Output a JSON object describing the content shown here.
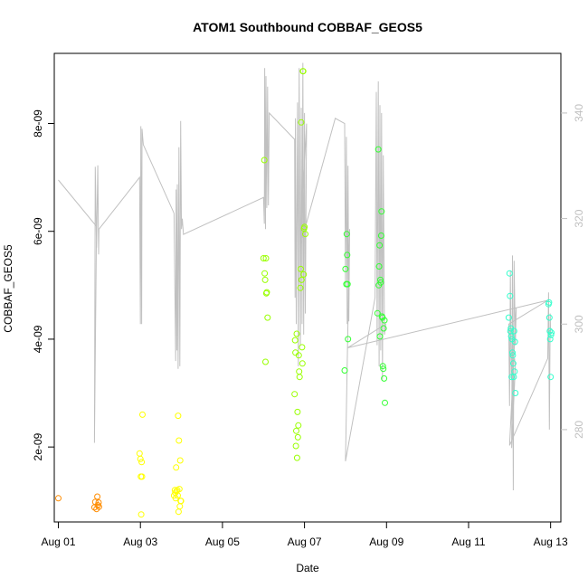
{
  "chart_data": {
    "type": "scatter",
    "title": "ATOM1 Southbound COBBAF_GEOS5",
    "xlabel": "Date",
    "ylabel": "COBBAF_GEOS5",
    "xlim": [
      -0.1,
      12.25
    ],
    "ylim": [
      6.1e-10,
      9.3e-09
    ],
    "y2lim": [
      262.5,
      351.3
    ],
    "x_ticks": [
      {
        "value": 0,
        "label": "Aug 01"
      },
      {
        "value": 2,
        "label": "Aug 03"
      },
      {
        "value": 4,
        "label": "Aug 05"
      },
      {
        "value": 6,
        "label": "Aug 07"
      },
      {
        "value": 8,
        "label": "Aug 09"
      },
      {
        "value": 10,
        "label": "Aug 11"
      },
      {
        "value": 12,
        "label": "Aug 13"
      }
    ],
    "y_ticks": [
      {
        "value": 2e-09,
        "label": "2e-09"
      },
      {
        "value": 4e-09,
        "label": "4e-09"
      },
      {
        "value": 6e-09,
        "label": "6e-09"
      },
      {
        "value": 8e-09,
        "label": "8e-09"
      }
    ],
    "y2_ticks": [
      {
        "value": 280,
        "label": "280"
      },
      {
        "value": 300,
        "label": "300"
      },
      {
        "value": 320,
        "label": "320"
      },
      {
        "value": 340,
        "label": "340"
      }
    ],
    "secondary_series": {
      "color": "#c0c0c0",
      "points": [
        [
          0.0,
          327.3
        ],
        [
          0.93,
          318.5
        ],
        [
          0.88,
          277.5
        ],
        [
          0.9,
          329.8
        ],
        [
          0.93,
          314.5
        ],
        [
          0.96,
          330.1
        ],
        [
          0.98,
          313.2
        ],
        [
          0.99,
          318.0
        ],
        [
          1.98,
          327.8
        ],
        [
          2.0,
          300.0
        ],
        [
          2.01,
          337.5
        ],
        [
          2.03,
          300.0
        ],
        [
          2.04,
          337.0
        ],
        [
          2.07,
          334.0
        ],
        [
          2.82,
          321.0
        ],
        [
          2.86,
          293.0
        ],
        [
          2.87,
          325.5
        ],
        [
          2.89,
          295.0
        ],
        [
          2.9,
          326.5
        ],
        [
          2.92,
          291.5
        ],
        [
          2.94,
          333.5
        ],
        [
          2.96,
          292.0
        ],
        [
          2.98,
          338.5
        ],
        [
          3.0,
          318.0
        ],
        [
          3.02,
          320.0
        ],
        [
          3.05,
          317.0
        ],
        [
          5.0,
          324.0
        ],
        [
          5.02,
          319.0
        ],
        [
          5.03,
          348.5
        ],
        [
          5.05,
          318.0
        ],
        [
          5.06,
          347.0
        ],
        [
          5.08,
          322.0
        ],
        [
          5.1,
          345.0
        ],
        [
          5.12,
          322.5
        ],
        [
          5.14,
          340.0
        ],
        [
          5.76,
          335.0
        ],
        [
          5.77,
          305.0
        ],
        [
          5.78,
          339.0
        ],
        [
          5.8,
          300.0
        ],
        [
          5.83,
          342.0
        ],
        [
          5.85,
          292.0
        ],
        [
          5.87,
          348.5
        ],
        [
          5.9,
          296.0
        ],
        [
          5.92,
          341.0
        ],
        [
          5.94,
          300.0
        ],
        [
          5.96,
          349.5
        ],
        [
          5.98,
          298.0
        ],
        [
          6.0,
          340.0
        ],
        [
          6.02,
          302.0
        ],
        [
          6.05,
          338.0
        ],
        [
          5.9,
          315.0
        ],
        [
          6.75,
          339.0
        ],
        [
          6.98,
          338.0
        ],
        [
          7.0,
          308.0
        ],
        [
          7.02,
          335.5
        ],
        [
          7.04,
          300.0
        ],
        [
          7.06,
          330.0
        ],
        [
          7.08,
          300.5
        ],
        [
          7.1,
          318.0
        ],
        [
          7.0,
          274.0
        ],
        [
          7.72,
          305.0
        ],
        [
          7.75,
          344.0
        ],
        [
          7.77,
          296.0
        ],
        [
          7.8,
          346.0
        ],
        [
          7.82,
          292.0
        ],
        [
          7.84,
          341.5
        ],
        [
          7.86,
          295.0
        ],
        [
          7.88,
          340.0
        ],
        [
          7.9,
          289.5
        ],
        [
          7.92,
          332.0
        ],
        [
          7.95,
          298.0
        ],
        [
          7.98,
          300.0
        ],
        [
          7.05,
          295.5
        ],
        [
          11.93,
          304.5
        ],
        [
          10.98,
          300.0
        ],
        [
          11.0,
          284.5
        ],
        [
          11.02,
          310.0
        ],
        [
          11.04,
          290.0
        ],
        [
          11.07,
          292.0
        ],
        [
          11.08,
          280.0
        ],
        [
          11.1,
          293.0
        ],
        [
          11.12,
          293.5
        ],
        [
          11.14,
          292.0
        ],
        [
          11.05,
          276.5
        ],
        [
          11.07,
          313.0
        ],
        [
          11.09,
          268.5
        ],
        [
          11.11,
          312.0
        ],
        [
          11.14,
          296.0
        ],
        [
          11.16,
          303.0
        ],
        [
          11.0,
          277.0
        ],
        [
          11.93,
          293.5
        ],
        [
          11.95,
          306.0
        ],
        [
          11.97,
          280.0
        ],
        [
          11.99,
          302.0
        ],
        [
          12.0,
          298.0
        ]
      ]
    },
    "series": [
      {
        "color": "#ff8c00",
        "points": [
          [
            0.0,
            1.05e-09
          ],
          [
            0.88,
            8.8e-10
          ],
          [
            0.9,
            9.8e-10
          ],
          [
            0.93,
            8.5e-10
          ],
          [
            0.95,
            1.08e-09
          ],
          [
            0.96,
            9.2e-10
          ],
          [
            0.98,
            9.7e-10
          ],
          [
            0.99,
            8.9e-10
          ]
        ]
      },
      {
        "color": "#ffff00",
        "points": [
          [
            1.98,
            1.88e-09
          ],
          [
            2.0,
            1.78e-09
          ],
          [
            2.01,
            1.45e-09
          ],
          [
            2.02,
            7.5e-10
          ],
          [
            2.03,
            1.72e-09
          ],
          [
            2.05,
            2.6e-09
          ],
          [
            2.04,
            1.45e-09
          ],
          [
            2.82,
            1.1e-09
          ],
          [
            2.84,
            1.2e-09
          ],
          [
            2.85,
            1.15e-09
          ],
          [
            2.86,
            1.05e-09
          ],
          [
            2.87,
            1.62e-09
          ],
          [
            2.88,
            1.18e-09
          ],
          [
            2.9,
            1.2e-09
          ],
          [
            2.91,
            1.1e-09
          ],
          [
            2.92,
            2.58e-09
          ],
          [
            2.93,
            8e-10
          ],
          [
            2.94,
            2.12e-09
          ],
          [
            2.95,
            1.22e-09
          ],
          [
            2.96,
            9e-10
          ],
          [
            2.97,
            1.75e-09
          ],
          [
            2.98,
            1e-09
          ],
          [
            2.99,
            1e-09
          ]
        ]
      },
      {
        "color": "#99ff00",
        "points": [
          [
            5.0,
            5.5e-09
          ],
          [
            5.02,
            7.32e-09
          ],
          [
            5.03,
            5.22e-09
          ],
          [
            5.04,
            5.1e-09
          ],
          [
            5.05,
            3.58e-09
          ],
          [
            5.06,
            5.5e-09
          ],
          [
            5.07,
            4.85e-09
          ],
          [
            5.08,
            4.87e-09
          ],
          [
            5.1,
            4.4e-09
          ],
          [
            5.76,
            2.98e-09
          ],
          [
            5.77,
            3.98e-09
          ],
          [
            5.78,
            3.75e-09
          ],
          [
            5.79,
            2.02e-09
          ],
          [
            5.8,
            2.3e-09
          ],
          [
            5.81,
            4.1e-09
          ],
          [
            5.82,
            1.8e-09
          ],
          [
            5.83,
            2.65e-09
          ],
          [
            5.84,
            2.18e-09
          ],
          [
            5.85,
            2.4e-09
          ],
          [
            5.86,
            3.7e-09
          ],
          [
            5.87,
            3.4e-09
          ],
          [
            5.88,
            3.3e-09
          ],
          [
            5.9,
            4.95e-09
          ],
          [
            5.91,
            5.3e-09
          ],
          [
            5.92,
            8.02e-09
          ],
          [
            5.93,
            5.1e-09
          ],
          [
            5.94,
            3.85e-09
          ],
          [
            5.95,
            3.55e-09
          ],
          [
            5.96,
            8.97e-09
          ],
          [
            5.97,
            8.97e-09
          ],
          [
            5.98,
            5.2e-09
          ],
          [
            5.99,
            6.05e-09
          ],
          [
            6.0,
            6.08e-09
          ],
          [
            6.02,
            5.95e-09
          ]
        ]
      },
      {
        "color": "#33ff33",
        "points": [
          [
            6.98,
            3.42e-09
          ],
          [
            7.0,
            5.3e-09
          ],
          [
            7.02,
            5.02e-09
          ],
          [
            7.03,
            5.95e-09
          ],
          [
            7.04,
            5.56e-09
          ],
          [
            7.05,
            5.02e-09
          ],
          [
            7.06,
            4e-09
          ],
          [
            7.78,
            4.48e-09
          ],
          [
            7.8,
            7.52e-09
          ],
          [
            7.81,
            5e-09
          ],
          [
            7.82,
            5.35e-09
          ],
          [
            7.83,
            5.74e-09
          ],
          [
            7.84,
            4.05e-09
          ],
          [
            7.85,
            5.1e-09
          ],
          [
            7.86,
            5.05e-09
          ],
          [
            7.87,
            5.92e-09
          ],
          [
            7.88,
            6.37e-09
          ],
          [
            7.89,
            4.42e-09
          ],
          [
            7.9,
            4.4e-09
          ],
          [
            7.91,
            3.5e-09
          ],
          [
            7.92,
            3.45e-09
          ],
          [
            7.93,
            4.2e-09
          ],
          [
            7.94,
            3.27e-09
          ],
          [
            7.95,
            4.35e-09
          ],
          [
            7.96,
            2.82e-09
          ]
        ]
      },
      {
        "color": "#33ffcc",
        "points": [
          [
            10.98,
            4.4e-09
          ],
          [
            11.0,
            5.22e-09
          ],
          [
            11.01,
            4.8e-09
          ],
          [
            11.02,
            4.15e-09
          ],
          [
            11.03,
            4.2e-09
          ],
          [
            11.04,
            4.05e-09
          ],
          [
            11.05,
            3.3e-09
          ],
          [
            11.06,
            4e-09
          ],
          [
            11.07,
            3.75e-09
          ],
          [
            11.08,
            3.7e-09
          ],
          [
            11.09,
            3.55e-09
          ],
          [
            11.1,
            3.3e-09
          ],
          [
            11.11,
            4.15e-09
          ],
          [
            11.12,
            3.4e-09
          ],
          [
            11.13,
            3.95e-09
          ],
          [
            11.14,
            3e-09
          ],
          [
            11.95,
            4.65e-09
          ],
          [
            11.96,
            4.68e-09
          ],
          [
            11.97,
            4.4e-09
          ],
          [
            11.98,
            4.15e-09
          ],
          [
            11.99,
            4e-09
          ],
          [
            12.0,
            3.3e-09
          ],
          [
            12.01,
            4.08e-09
          ],
          [
            12.02,
            4.12e-09
          ]
        ]
      }
    ],
    "grid": false,
    "legend": "none"
  }
}
